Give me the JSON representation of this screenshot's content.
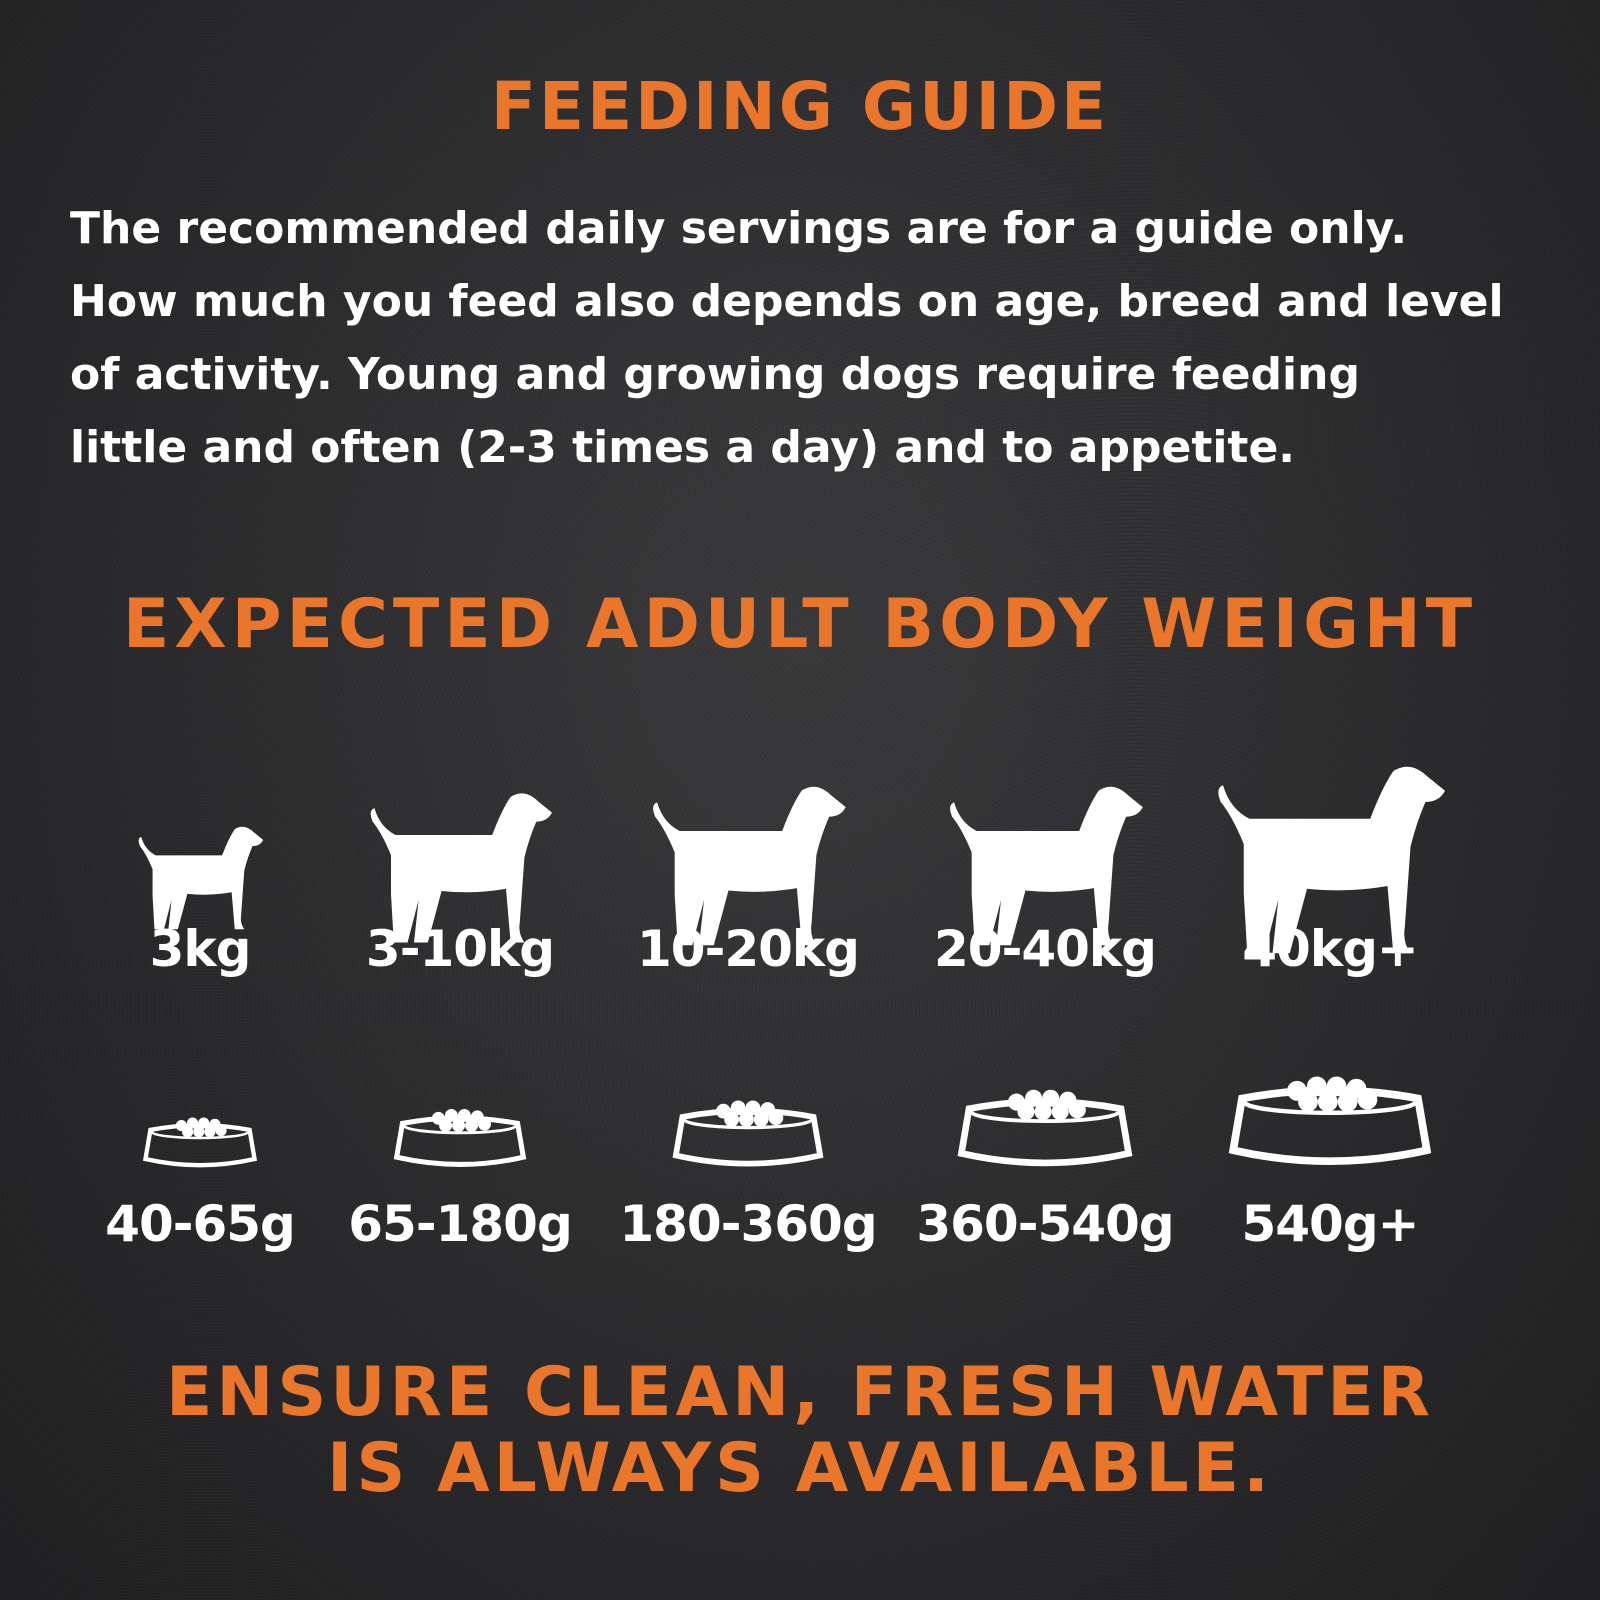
{
  "title": "FEEDING GUIDE",
  "intro_lines": [
    "The recommended daily servings are for a guide only.",
    "How much you feed also depends on age, breed and level",
    "of activity. Young and growing dogs require feeding",
    "little and often (2-3 times a day) and to appetite."
  ],
  "weight_heading": "EXPECTED ADULT BODY WEIGHT",
  "colors": {
    "accent": "#e9762b",
    "text": "#ffffff",
    "background": "#2b2b2d"
  },
  "dogs": [
    {
      "icon": "terrier-silhouette-icon",
      "weight": "3kg",
      "serving": "40-65g"
    },
    {
      "icon": "airedale-silhouette-icon",
      "weight": "3-10kg",
      "serving": "65-180g"
    },
    {
      "icon": "labrador-silhouette-icon",
      "weight": "10-20kg",
      "serving": "180-360g"
    },
    {
      "icon": "mastiff-silhouette-icon",
      "weight": "20-40kg",
      "serving": "360-540g"
    },
    {
      "icon": "great-dane-silhouette-icon",
      "weight": "40kg+",
      "serving": "540g+"
    }
  ],
  "water_lines": [
    "ENSURE CLEAN, FRESH WATER",
    "IS ALWAYS AVAILABLE."
  ]
}
